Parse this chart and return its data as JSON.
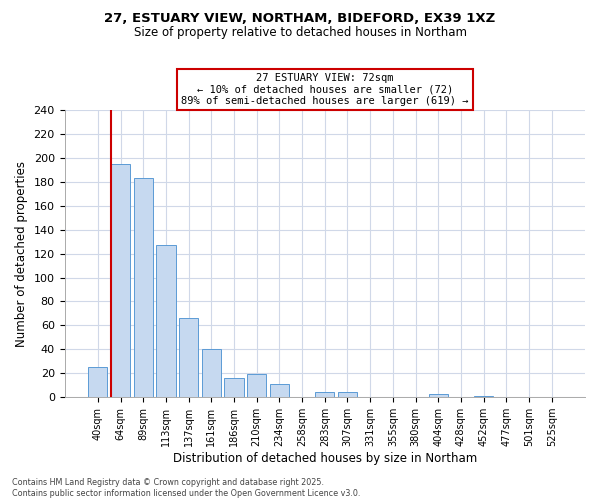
{
  "title": "27, ESTUARY VIEW, NORTHAM, BIDEFORD, EX39 1XZ",
  "subtitle": "Size of property relative to detached houses in Northam",
  "xlabel": "Distribution of detached houses by size in Northam",
  "ylabel": "Number of detached properties",
  "bar_labels": [
    "40sqm",
    "64sqm",
    "89sqm",
    "113sqm",
    "137sqm",
    "161sqm",
    "186sqm",
    "210sqm",
    "234sqm",
    "258sqm",
    "283sqm",
    "307sqm",
    "331sqm",
    "355sqm",
    "380sqm",
    "404sqm",
    "428sqm",
    "452sqm",
    "477sqm",
    "501sqm",
    "525sqm"
  ],
  "bar_values": [
    25,
    195,
    183,
    127,
    66,
    40,
    16,
    19,
    11,
    0,
    4,
    4,
    0,
    0,
    0,
    3,
    0,
    1,
    0,
    0,
    0
  ],
  "bar_color": "#c6d9f0",
  "bar_edge_color": "#5b9bd5",
  "vline_bar_index": 1,
  "vline_color": "#cc0000",
  "ylim": [
    0,
    240
  ],
  "yticks": [
    0,
    20,
    40,
    60,
    80,
    100,
    120,
    140,
    160,
    180,
    200,
    220,
    240
  ],
  "annotation_title": "27 ESTUARY VIEW: 72sqm",
  "annotation_line1": "← 10% of detached houses are smaller (72)",
  "annotation_line2": "89% of semi-detached houses are larger (619) →",
  "annotation_box_color": "#ffffff",
  "annotation_box_edge": "#cc0000",
  "footer_line1": "Contains HM Land Registry data © Crown copyright and database right 2025.",
  "footer_line2": "Contains public sector information licensed under the Open Government Licence v3.0.",
  "bg_color": "#ffffff",
  "grid_color": "#d0d8e8"
}
